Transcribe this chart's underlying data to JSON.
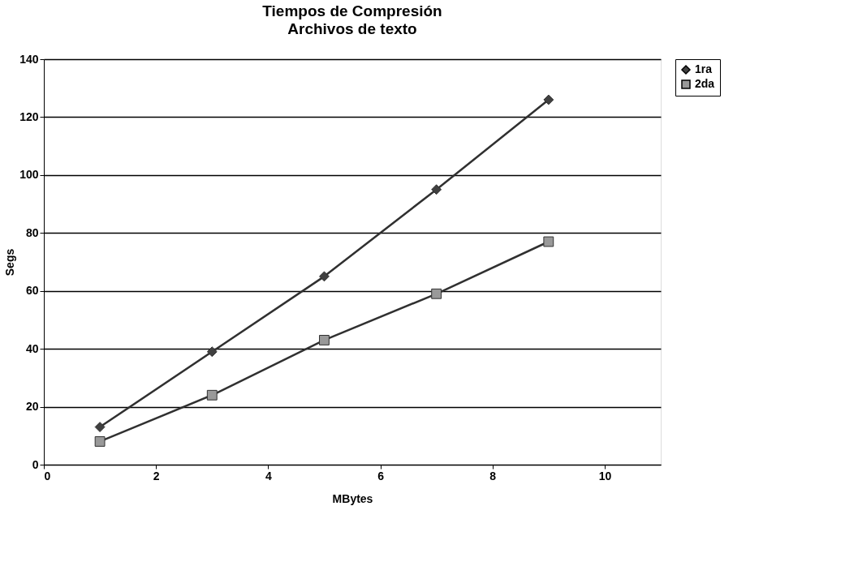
{
  "chart_data": {
    "type": "line",
    "title": "Tiempos de Compresión",
    "subtitle": "Archivos de texto",
    "xlabel": "MBytes",
    "ylabel": "Segs",
    "x": [
      1,
      3,
      5,
      7,
      9
    ],
    "series": [
      {
        "name": "1ra",
        "color": "#404040",
        "marker": "diamond",
        "values": [
          13,
          39,
          65,
          95,
          126
        ]
      },
      {
        "name": "2da",
        "color": "#999999",
        "marker": "square",
        "values": [
          8,
          24,
          43,
          59,
          77
        ]
      }
    ],
    "xlim": [
      0,
      11
    ],
    "xticks": [
      0,
      2,
      4,
      6,
      8,
      10
    ],
    "ylim": [
      0,
      140
    ],
    "yticks": [
      0,
      20,
      40,
      60,
      80,
      100,
      120,
      140
    ],
    "grid": "y",
    "legend": "right",
    "line_style": "solid"
  }
}
